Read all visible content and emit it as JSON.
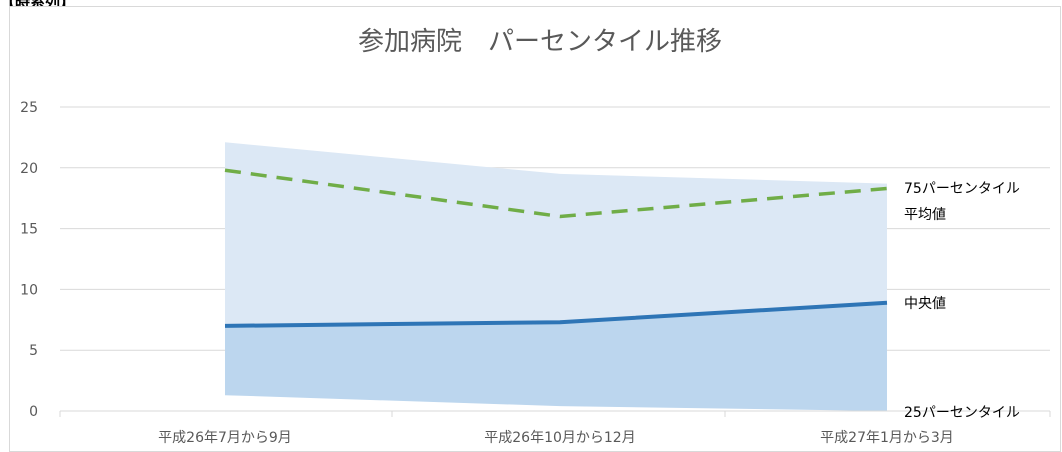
{
  "corner_label": "【時系列】",
  "chart_data": {
    "type": "area",
    "title": "参加病院　パーセンタイル推移",
    "categories": [
      "平成26年7月から9月",
      "平成26年10月から12月",
      "平成27年1月から3月"
    ],
    "ylim": [
      0,
      25
    ],
    "yticks": [
      "0",
      "5",
      "10",
      "15",
      "20",
      "25"
    ],
    "grid": true,
    "series": [
      {
        "name": "75パーセンタイル",
        "kind": "band-upper",
        "values": [
          22.1,
          19.5,
          18.7
        ]
      },
      {
        "name": "中央値",
        "kind": "band-split",
        "values": [
          7.0,
          7.3,
          8.9
        ]
      },
      {
        "name": "25パーセンタイル",
        "kind": "band-lower",
        "values": [
          1.3,
          0.4,
          0.0
        ]
      },
      {
        "name": "平均値",
        "kind": "dashed-line",
        "values": [
          19.8,
          16.0,
          18.3
        ]
      }
    ],
    "colors": {
      "upper_band": "#dce8f5",
      "lower_band": "#bcd6ee",
      "median_line": "#2e75b6",
      "mean_line": "#70ad47",
      "grid": "#d9d9d9"
    }
  }
}
